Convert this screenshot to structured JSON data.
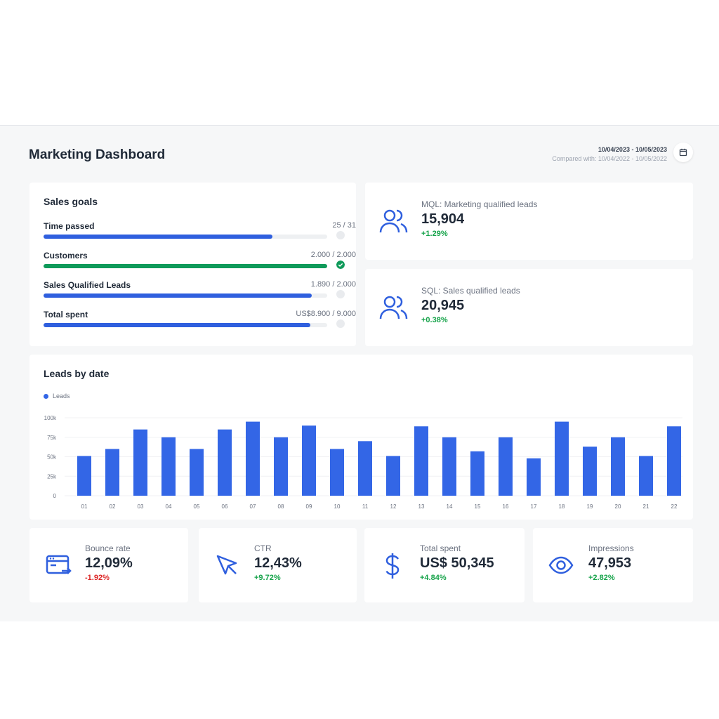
{
  "header": {
    "title": "Marketing Dashboard",
    "date_range": "10/04/2023 - 10/05/2023",
    "compared": "Compared with: 10/04/2022 - 10/05/2022",
    "calendar_icon": "calendar-icon"
  },
  "sales_goals": {
    "title": "Sales goals",
    "items": [
      {
        "label": "Time passed",
        "value": "25 / 31",
        "progress": 0.806,
        "color": "#2f5fde",
        "complete": false
      },
      {
        "label": "Customers",
        "value": "2.000 / 2.000",
        "progress": 1.0,
        "color": "#0f9a5a",
        "complete": true
      },
      {
        "label": "Sales Qualified Leads",
        "value": "1.890 / 2.000",
        "progress": 0.945,
        "color": "#2f5fde",
        "complete": false
      },
      {
        "label": "Total spent",
        "value": "US$8.900 / 9.000",
        "progress": 0.94,
        "color": "#2f5fde",
        "complete": false
      }
    ]
  },
  "mql": {
    "label": "MQL: Marketing qualified leads",
    "value": "15,904",
    "change": "+1.29%",
    "icon": "users-icon"
  },
  "sql": {
    "label": "SQL: Sales qualified leads",
    "value": "20,945",
    "change": "+0.38%",
    "icon": "users-icon"
  },
  "chart_data": {
    "type": "bar",
    "title": "Leads by date",
    "legend": [
      "Leads"
    ],
    "legend_position": "top-left",
    "color": "#3366e6",
    "grid": true,
    "categories": [
      "01",
      "02",
      "03",
      "04",
      "05",
      "06",
      "07",
      "08",
      "09",
      "10",
      "11",
      "12",
      "13",
      "14",
      "15",
      "16",
      "17",
      "18",
      "19",
      "20",
      "21",
      "22"
    ],
    "series": [
      {
        "name": "Leads",
        "values": [
          51000,
          60000,
          85000,
          75000,
          60000,
          85000,
          95000,
          75000,
          90000,
          60000,
          70000,
          51000,
          89000,
          75000,
          57000,
          75000,
          48000,
          95000,
          63000,
          75000,
          51000,
          89000
        ]
      }
    ],
    "ylim": [
      0,
      100000
    ],
    "yticks": [
      "0",
      "25k",
      "50k",
      "75k",
      "100k"
    ]
  },
  "kpis": [
    {
      "label": "Bounce rate",
      "value": "12,09%",
      "change": "-1.92%",
      "trend": "negative",
      "icon": "browser-exit-icon"
    },
    {
      "label": "CTR",
      "value": "12,43%",
      "change": "+9.72%",
      "trend": "positive",
      "icon": "cursor-icon"
    },
    {
      "label": "Total spent",
      "value": "US$ 50,345",
      "change": "+4.84%",
      "trend": "positive",
      "icon": "dollar-icon"
    },
    {
      "label": "Impressions",
      "value": "47,953",
      "change": "+2.82%",
      "trend": "positive",
      "icon": "eye-icon"
    }
  ]
}
